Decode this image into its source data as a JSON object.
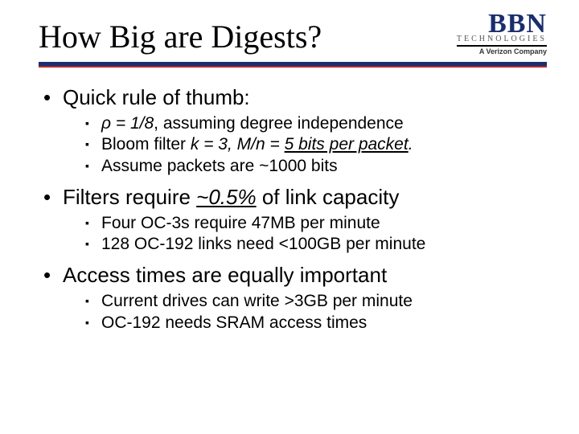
{
  "title": "How Big are Digests?",
  "logo": {
    "main": "BBN",
    "tech": "TECHNOLOGIES",
    "sub": "A Verizon Company"
  },
  "colors": {
    "navy": "#1a2e6e",
    "red": "#b02a2a",
    "text": "#000000",
    "background": "#ffffff"
  },
  "bullets": [
    {
      "text": "Quick rule of thumb:",
      "sub": [
        {
          "pre": "ρ = 1/8",
          "preItalic": true,
          "post": ", assuming degree independence"
        },
        {
          "pre": "Bloom filter ",
          "mid": "k = 3, M/n = ",
          "midItalic": true,
          "u": "5 bits per packet",
          "uItalic": true,
          "post": "."
        },
        {
          "pre": "Assume packets are ~1000 bits"
        }
      ]
    },
    {
      "text_pre": "Filters require ",
      "text_u": "~0.5%",
      "text_uItalic": true,
      "text_post": " of link capacity",
      "sub": [
        {
          "pre": "Four OC-3s require 47MB per minute"
        },
        {
          "pre": "128 OC-192 links need <100GB per minute"
        }
      ]
    },
    {
      "text": "Access times are equally important",
      "sub": [
        {
          "pre": "Current drives can write >3GB per minute"
        },
        {
          "pre": "OC-192 needs SRAM access times"
        }
      ]
    }
  ]
}
